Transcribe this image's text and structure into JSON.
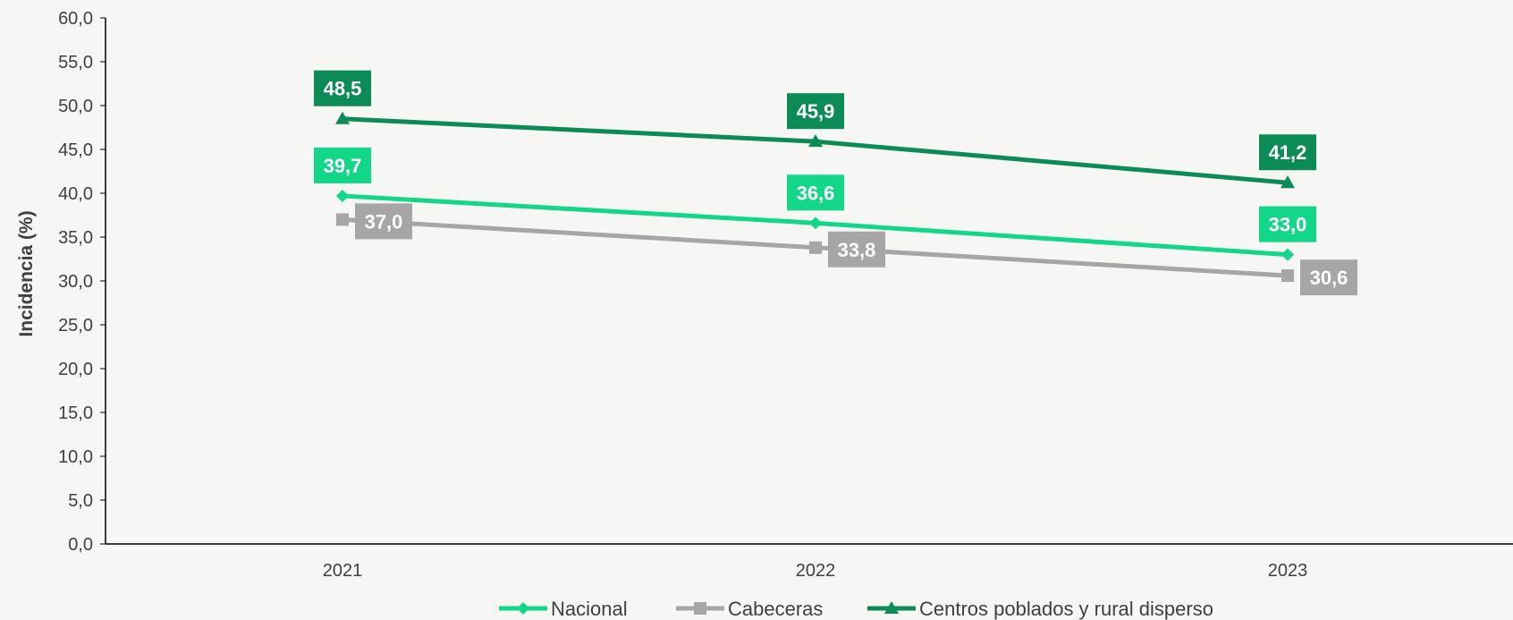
{
  "chart_data": {
    "type": "line",
    "title": "",
    "xlabel": "",
    "ylabel": "Incidencia (%)",
    "categories": [
      "2021",
      "2022",
      "2023"
    ],
    "ylim": [
      0,
      60
    ],
    "yticks": [
      "0,0",
      "5,0",
      "10,0",
      "15,0",
      "20,0",
      "25,0",
      "30,0",
      "35,0",
      "40,0",
      "45,0",
      "50,0",
      "55,0",
      "60,0"
    ],
    "grid": false,
    "legend_position": "bottom",
    "series": [
      {
        "name": "Nacional",
        "values": [
          39.7,
          36.6,
          33.0
        ],
        "labels": [
          "39,7",
          "36,6",
          "33,0"
        ],
        "color": "#12d688",
        "marker": "diamond",
        "label_position": "above"
      },
      {
        "name": "Cabeceras",
        "values": [
          37.0,
          33.8,
          30.6
        ],
        "labels": [
          "37,0",
          "33,8",
          "30,6"
        ],
        "color": "#a6a6a6",
        "marker": "square",
        "label_position": "right"
      },
      {
        "name": "Centros poblados y rural disperso",
        "values": [
          48.5,
          45.9,
          41.2
        ],
        "labels": [
          "48,5",
          "45,9",
          "41,2"
        ],
        "color": "#0b8b55",
        "marker": "triangle",
        "label_position": "above"
      }
    ]
  }
}
